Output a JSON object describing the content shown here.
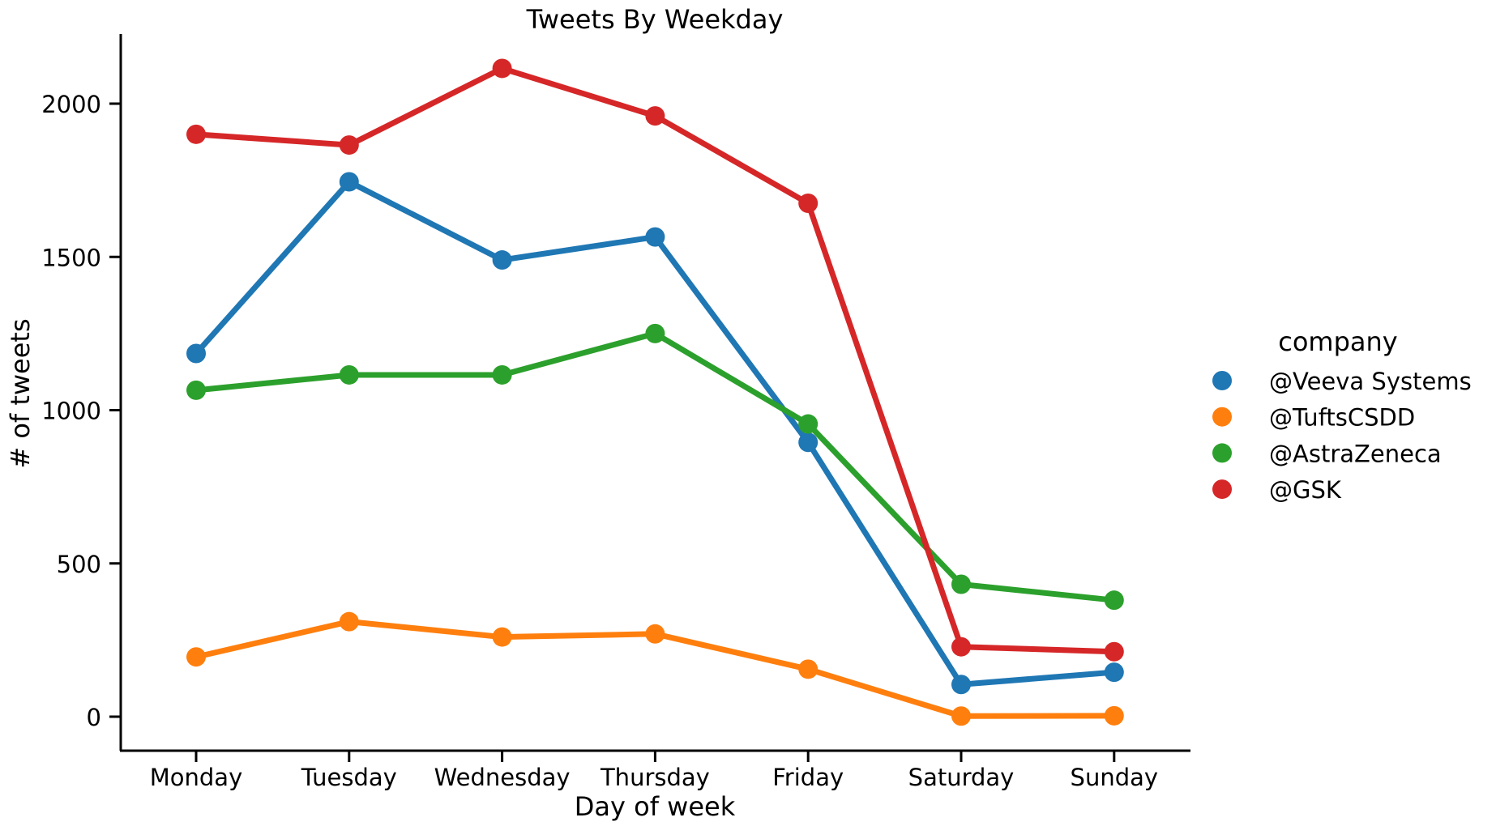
{
  "chart_data": {
    "type": "line",
    "title": "Tweets By Weekday",
    "xlabel": "Day of week",
    "ylabel": "# of tweets",
    "categories": [
      "Monday",
      "Tuesday",
      "Wednesday",
      "Thursday",
      "Friday",
      "Saturday",
      "Sunday"
    ],
    "ylim": [
      -105,
      2225
    ],
    "yticks": [
      0,
      500,
      1000,
      1500,
      2000
    ],
    "grid": false,
    "legend": {
      "title": "company",
      "placement": "right"
    },
    "series": [
      {
        "name": "@Veeva Systems",
        "color": "#1f77b4",
        "values": [
          1185,
          1745,
          1490,
          1565,
          895,
          105,
          145
        ]
      },
      {
        "name": "@TuftsCSDD",
        "color": "#ff7f0e",
        "values": [
          195,
          310,
          260,
          270,
          155,
          2,
          3
        ]
      },
      {
        "name": "@AstraZeneca",
        "color": "#2ca02c",
        "values": [
          1065,
          1115,
          1115,
          1250,
          955,
          432,
          380
        ]
      },
      {
        "name": "@GSK",
        "color": "#d62728",
        "values": [
          1900,
          1865,
          2115,
          1960,
          1675,
          228,
          212
        ]
      }
    ]
  }
}
